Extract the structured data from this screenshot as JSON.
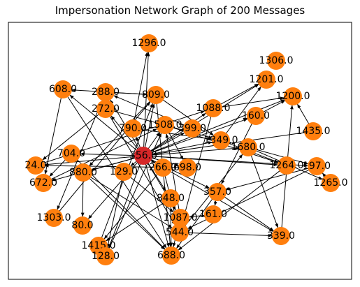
{
  "title": "Impersonation Network Graph of 200 Messages",
  "colors": {
    "node": "#ff7f0e",
    "highlight": "#d62728",
    "edge": "#000000"
  },
  "nodes": [
    {
      "id": "1296.0",
      "label": "1296.0"
    },
    {
      "id": "1306.0",
      "label": "1306.0"
    },
    {
      "id": "1201.0",
      "label": "1201.0"
    },
    {
      "id": "608.0",
      "label": "608.0"
    },
    {
      "id": "288.0",
      "label": "288.0"
    },
    {
      "id": "809.0",
      "label": "809.0"
    },
    {
      "id": "1200.0",
      "label": "1200.0"
    },
    {
      "id": "272.0",
      "label": "272.0"
    },
    {
      "id": "1088.0",
      "label": "1088.0"
    },
    {
      "id": "160.0",
      "label": "160.0"
    },
    {
      "id": "1508.0",
      "label": "1508.0"
    },
    {
      "id": "790.0",
      "label": "790.0"
    },
    {
      "id": "399.0",
      "label": "399.0"
    },
    {
      "id": "1435.0",
      "label": "1435.0"
    },
    {
      "id": "1349.0",
      "label": "1349.0"
    },
    {
      "id": "1680.0",
      "label": "1680.0"
    },
    {
      "id": "704.0",
      "label": "704.0"
    },
    {
      "id": "356.0",
      "label": "356.0",
      "highlight": true
    },
    {
      "id": "24.0",
      "label": "24.0"
    },
    {
      "id": "266.0",
      "label": "266.0"
    },
    {
      "id": "698.0",
      "label": "698.0"
    },
    {
      "id": "1264.0",
      "label": "1264.0"
    },
    {
      "id": "197.0",
      "label": "197.0"
    },
    {
      "id": "880.0",
      "label": "880.0"
    },
    {
      "id": "129.0",
      "label": "129.0"
    },
    {
      "id": "672.0",
      "label": "672.0"
    },
    {
      "id": "1265.0",
      "label": "1265.0"
    },
    {
      "id": "357.0",
      "label": "357.0"
    },
    {
      "id": "848.0",
      "label": "848.0"
    },
    {
      "id": "1303.0",
      "label": "1303.0"
    },
    {
      "id": "161.0",
      "label": "161.0"
    },
    {
      "id": "80.0",
      "label": "80.0"
    },
    {
      "id": "1087.0",
      "label": "1087.0"
    },
    {
      "id": "544.0",
      "label": "544.0"
    },
    {
      "id": "339.0",
      "label": "339.0"
    },
    {
      "id": "1415.0",
      "label": "1415.0"
    },
    {
      "id": "128.0",
      "label": "128.0"
    },
    {
      "id": "688.0",
      "label": "688.0"
    }
  ],
  "edges": [
    [
      "356.0",
      "1296.0"
    ],
    [
      "790.0",
      "1296.0"
    ],
    [
      "356.0",
      "809.0"
    ],
    [
      "356.0",
      "288.0"
    ],
    [
      "356.0",
      "272.0"
    ],
    [
      "356.0",
      "608.0"
    ],
    [
      "356.0",
      "1508.0"
    ],
    [
      "356.0",
      "399.0"
    ],
    [
      "356.0",
      "1349.0"
    ],
    [
      "356.0",
      "1680.0"
    ],
    [
      "356.0",
      "1088.0"
    ],
    [
      "356.0",
      "160.0"
    ],
    [
      "356.0",
      "1201.0"
    ],
    [
      "356.0",
      "1200.0"
    ],
    [
      "1435.0",
      "356.0"
    ],
    [
      "356.0",
      "1264.0"
    ],
    [
      "356.0",
      "197.0"
    ],
    [
      "356.0",
      "698.0"
    ],
    [
      "356.0",
      "266.0"
    ],
    [
      "356.0",
      "704.0"
    ],
    [
      "356.0",
      "24.0"
    ],
    [
      "356.0",
      "880.0"
    ],
    [
      "356.0",
      "129.0"
    ],
    [
      "356.0",
      "672.0"
    ],
    [
      "356.0",
      "848.0"
    ],
    [
      "356.0",
      "1087.0"
    ],
    [
      "356.0",
      "688.0"
    ],
    [
      "356.0",
      "80.0"
    ],
    [
      "356.0",
      "128.0"
    ],
    [
      "356.0",
      "357.0"
    ],
    [
      "356.0",
      "339.0"
    ],
    [
      "356.0",
      "790.0"
    ],
    [
      "608.0",
      "688.0"
    ],
    [
      "608.0",
      "672.0"
    ],
    [
      "288.0",
      "1303.0"
    ],
    [
      "288.0",
      "809.0"
    ],
    [
      "272.0",
      "1349.0"
    ],
    [
      "272.0",
      "24.0"
    ],
    [
      "272.0",
      "544.0"
    ],
    [
      "809.0",
      "688.0"
    ],
    [
      "809.0",
      "880.0"
    ],
    [
      "809.0",
      "1349.0"
    ],
    [
      "809.0",
      "608.0"
    ],
    [
      "1088.0",
      "1201.0"
    ],
    [
      "1088.0",
      "1200.0"
    ],
    [
      "1088.0",
      "544.0"
    ],
    [
      "160.0",
      "1200.0"
    ],
    [
      "160.0",
      "357.0"
    ],
    [
      "1349.0",
      "1264.0"
    ],
    [
      "1349.0",
      "1201.0"
    ],
    [
      "1680.0",
      "197.0"
    ],
    [
      "1680.0",
      "339.0"
    ],
    [
      "1680.0",
      "1265.0"
    ],
    [
      "1435.0",
      "1200.0"
    ],
    [
      "1265.0",
      "197.0"
    ],
    [
      "197.0",
      "544.0"
    ],
    [
      "197.0",
      "357.0"
    ],
    [
      "357.0",
      "339.0"
    ],
    [
      "357.0",
      "688.0"
    ],
    [
      "357.0",
      "161.0"
    ],
    [
      "161.0",
      "1087.0"
    ],
    [
      "544.0",
      "339.0"
    ],
    [
      "339.0",
      "1200.0"
    ],
    [
      "544.0",
      "1680.0"
    ],
    [
      "1087.0",
      "1508.0"
    ],
    [
      "1087.0",
      "688.0"
    ],
    [
      "848.0",
      "688.0"
    ],
    [
      "848.0",
      "1415.0"
    ],
    [
      "880.0",
      "688.0"
    ],
    [
      "880.0",
      "544.0"
    ],
    [
      "880.0",
      "80.0"
    ],
    [
      "129.0",
      "128.0"
    ],
    [
      "129.0",
      "1087.0"
    ],
    [
      "704.0",
      "688.0"
    ],
    [
      "704.0",
      "672.0"
    ],
    [
      "1508.0",
      "1264.0"
    ],
    [
      "1508.0",
      "698.0"
    ],
    [
      "266.0",
      "1415.0"
    ],
    [
      "266.0",
      "544.0"
    ],
    [
      "399.0",
      "288.0"
    ],
    [
      "698.0",
      "24.0"
    ],
    [
      "790.0",
      "1349.0"
    ],
    [
      "1303.0",
      "809.0"
    ],
    [
      "1415.0",
      "809.0"
    ],
    [
      "128.0",
      "1508.0"
    ],
    [
      "1264.0",
      "688.0"
    ],
    [
      "672.0",
      "1508.0"
    ],
    [
      "24.0",
      "1088.0"
    ]
  ]
}
